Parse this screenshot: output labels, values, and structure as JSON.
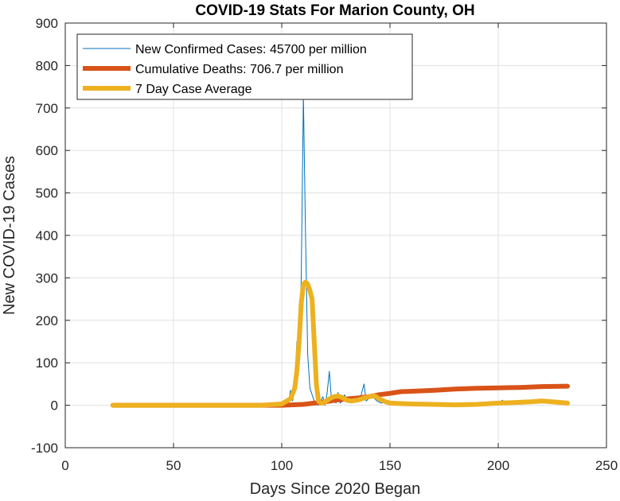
{
  "chart_data": {
    "type": "line",
    "title": "COVID-19 Stats For Marion County, OH",
    "xlabel": "Days Since 2020 Began",
    "ylabel": "New COVID-19 Cases",
    "xlim": [
      0,
      250
    ],
    "ylim": [
      -100,
      900
    ],
    "xticks": [
      0,
      50,
      100,
      150,
      200,
      250
    ],
    "yticks": [
      -100,
      0,
      100,
      200,
      300,
      400,
      500,
      600,
      700,
      800,
      900
    ],
    "grid": true,
    "legend_position": "top-left",
    "series": [
      {
        "name": "New Confirmed Cases: 45700 per million",
        "color": "#0072BD",
        "line_width": "thin",
        "x": [
          22,
          90,
          100,
          103,
          104,
          105,
          106,
          107,
          108,
          109,
          110,
          111,
          112,
          113,
          114,
          115,
          116,
          117,
          118,
          119,
          120,
          121,
          122,
          123,
          124,
          125,
          126,
          127,
          128,
          129,
          130,
          132,
          134,
          136,
          137,
          138,
          139,
          140,
          142,
          144,
          146,
          148,
          150,
          155,
          160,
          170,
          180,
          190,
          200,
          202,
          203,
          204,
          210,
          220,
          232
        ],
        "y": [
          0,
          0,
          2,
          5,
          35,
          10,
          40,
          150,
          140,
          300,
          730,
          400,
          120,
          40,
          25,
          10,
          5,
          0,
          10,
          20,
          0,
          30,
          80,
          10,
          15,
          5,
          30,
          5,
          10,
          25,
          10,
          15,
          12,
          10,
          30,
          50,
          10,
          15,
          20,
          10,
          5,
          8,
          6,
          5,
          4,
          3,
          3,
          2,
          4,
          12,
          3,
          5,
          8,
          6,
          5
        ]
      },
      {
        "name": "Cumulative Deaths: 706.7 per million",
        "color": "#D95319",
        "line_width": "thick",
        "x": [
          22,
          100,
          110,
          115,
          120,
          125,
          130,
          135,
          140,
          145,
          150,
          155,
          160,
          170,
          180,
          190,
          200,
          210,
          220,
          232
        ],
        "y": [
          0,
          0,
          2,
          5,
          8,
          12,
          15,
          17,
          20,
          25,
          28,
          32,
          33,
          35,
          38,
          40,
          41,
          42,
          44,
          45
        ]
      },
      {
        "name": "7 Day Case Average",
        "color": "#EDB120",
        "line_width": "thick",
        "x": [
          22,
          90,
          100,
          104,
          106,
          107,
          108,
          109,
          110,
          111,
          112,
          113,
          114,
          115,
          116,
          117,
          118,
          119,
          120,
          122,
          124,
          126,
          128,
          130,
          132,
          135,
          140,
          143,
          145,
          148,
          150,
          155,
          160,
          170,
          180,
          190,
          200,
          210,
          215,
          220,
          225,
          232
        ],
        "y": [
          0,
          0,
          3,
          15,
          40,
          80,
          150,
          240,
          285,
          290,
          285,
          270,
          250,
          150,
          50,
          10,
          5,
          5,
          8,
          15,
          20,
          22,
          18,
          12,
          10,
          12,
          20,
          22,
          15,
          8,
          5,
          4,
          3,
          2,
          1,
          2,
          5,
          7,
          8,
          10,
          8,
          5
        ]
      }
    ]
  }
}
